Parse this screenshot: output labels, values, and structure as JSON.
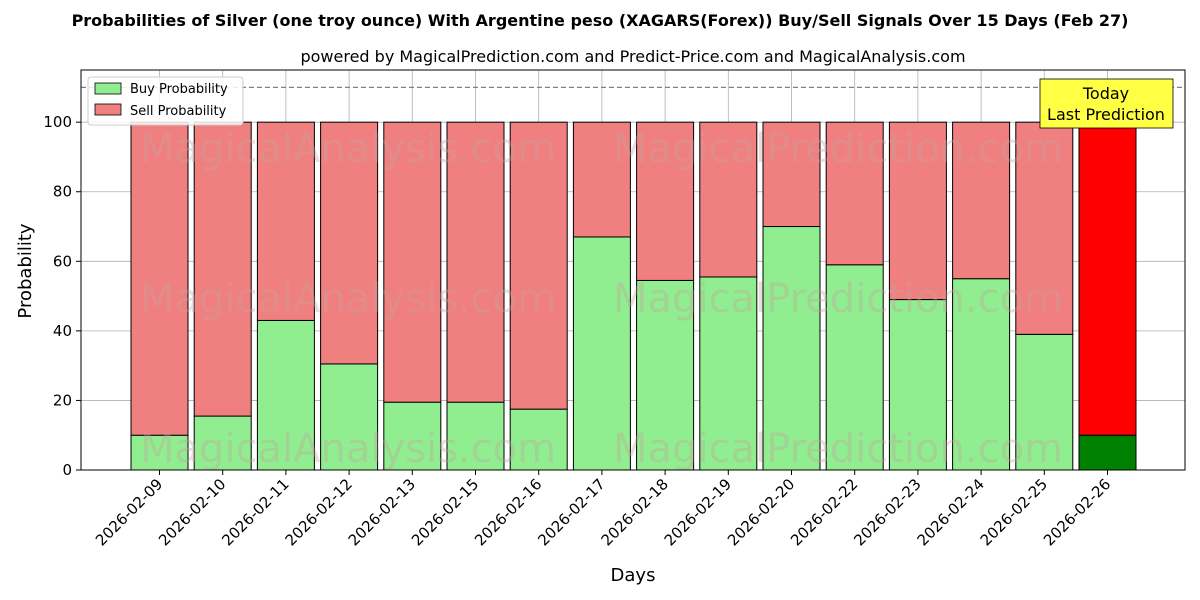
{
  "chart_data": {
    "type": "bar",
    "stacked": true,
    "title": "Probabilities of Silver (one troy ounce) With Argentine peso (XAGARS(Forex)) Buy/Sell Signals Over 15 Days (Feb 27)",
    "subtitle": "powered by MagicalPrediction.com and Predict-Price.com and MagicalAnalysis.com",
    "xlabel": "Days",
    "ylabel": "Probability",
    "ylim": [
      0,
      115
    ],
    "yticks": [
      0,
      20,
      40,
      60,
      80,
      100
    ],
    "reference_line": 110,
    "grid": true,
    "legend_position": "top-left",
    "categories": [
      "2026-02-09",
      "2026-02-10",
      "2026-02-11",
      "2026-02-12",
      "2026-02-13",
      "2026-02-15",
      "2026-02-16",
      "2026-02-17",
      "2026-02-18",
      "2026-02-19",
      "2026-02-20",
      "2026-02-22",
      "2026-02-23",
      "2026-02-24",
      "2026-02-25",
      "2026-02-26"
    ],
    "series": [
      {
        "name": "Buy Probability",
        "color": "#90ee90",
        "values": [
          10,
          15.5,
          43,
          30.5,
          19.5,
          19.5,
          17.5,
          67,
          54.5,
          55.5,
          70,
          59,
          49,
          55,
          39,
          10
        ]
      },
      {
        "name": "Sell Probability",
        "color": "#f08080",
        "values": [
          90,
          84.5,
          57,
          69.5,
          80.5,
          80.5,
          82.5,
          33,
          45.5,
          44.5,
          30,
          41,
          51,
          45,
          61,
          90
        ]
      }
    ],
    "highlight": {
      "index": 15,
      "buy_color": "#008000",
      "sell_color": "#ff0000",
      "label_lines": [
        "Today",
        "Last Prediction"
      ],
      "box_color": "#ffff44"
    },
    "watermarks": [
      "MagicalAnalysis.com",
      "MagicalPrediction.com"
    ]
  }
}
